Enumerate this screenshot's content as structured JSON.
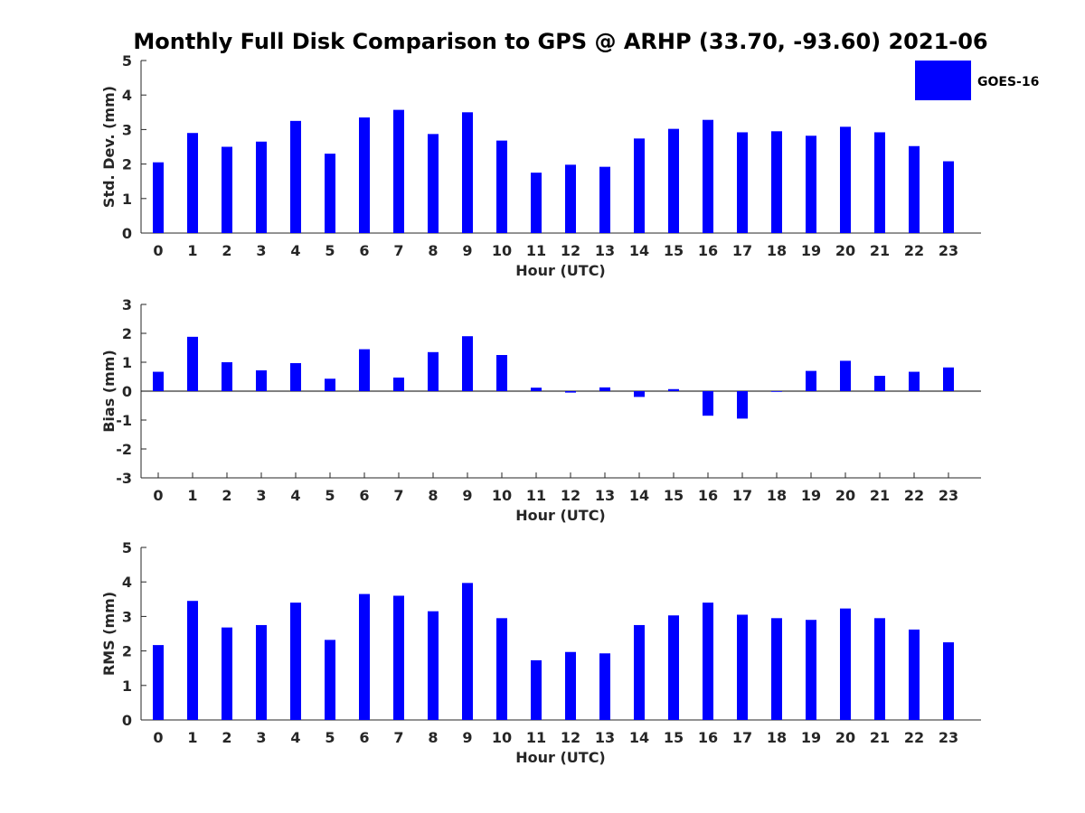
{
  "chart_title": "Monthly Full Disk Comparison to GPS @ ARHP (33.70, -93.60) 2021-06",
  "legend": {
    "label": "GOES-16",
    "color": "#0000ff"
  },
  "chart_data": [
    {
      "type": "bar",
      "name": "std-dev",
      "categories": [
        "0",
        "1",
        "2",
        "3",
        "4",
        "5",
        "6",
        "7",
        "8",
        "9",
        "10",
        "11",
        "12",
        "13",
        "14",
        "15",
        "16",
        "17",
        "18",
        "19",
        "20",
        "21",
        "22",
        "23"
      ],
      "values": [
        2.05,
        2.9,
        2.5,
        2.65,
        3.25,
        2.3,
        3.35,
        3.57,
        2.87,
        3.5,
        2.68,
        1.75,
        1.98,
        1.92,
        2.74,
        3.02,
        3.28,
        2.92,
        2.95,
        2.82,
        3.08,
        2.92,
        2.52,
        2.08
      ],
      "xlabel": "Hour (UTC)",
      "ylabel": "Std. Dev. (mm)",
      "ylim": [
        0,
        5
      ],
      "yticks": [
        "0",
        "1",
        "2",
        "3",
        "4",
        "5"
      ],
      "series_label": "GOES-16",
      "color": "#0000ff",
      "grid": false
    },
    {
      "type": "bar",
      "name": "bias",
      "categories": [
        "0",
        "1",
        "2",
        "3",
        "4",
        "5",
        "6",
        "7",
        "8",
        "9",
        "10",
        "11",
        "12",
        "13",
        "14",
        "15",
        "16",
        "17",
        "18",
        "19",
        "20",
        "21",
        "22",
        "23"
      ],
      "values": [
        0.67,
        1.88,
        1.0,
        0.72,
        0.97,
        0.43,
        1.45,
        0.47,
        1.35,
        1.9,
        1.25,
        0.12,
        -0.05,
        0.13,
        -0.2,
        0.07,
        -0.85,
        -0.95,
        -0.02,
        0.7,
        1.05,
        0.53,
        0.67,
        0.82
      ],
      "xlabel": "Hour (UTC)",
      "ylabel": "Bias (mm)",
      "ylim": [
        -3,
        3
      ],
      "yticks": [
        "-3",
        "-2",
        "-1",
        "0",
        "1",
        "2",
        "3"
      ],
      "series_label": "GOES-16",
      "color": "#0000ff",
      "grid": false
    },
    {
      "type": "bar",
      "name": "rms",
      "categories": [
        "0",
        "1",
        "2",
        "3",
        "4",
        "5",
        "6",
        "7",
        "8",
        "9",
        "10",
        "11",
        "12",
        "13",
        "14",
        "15",
        "16",
        "17",
        "18",
        "19",
        "20",
        "21",
        "22",
        "23"
      ],
      "values": [
        2.17,
        3.45,
        2.68,
        2.75,
        3.4,
        2.32,
        3.65,
        3.6,
        3.15,
        3.97,
        2.95,
        1.73,
        1.97,
        1.93,
        2.75,
        3.03,
        3.4,
        3.05,
        2.95,
        2.9,
        3.23,
        2.95,
        2.62,
        2.25
      ],
      "xlabel": "Hour (UTC)",
      "ylabel": "RMS (mm)",
      "ylim": [
        0,
        5
      ],
      "yticks": [
        "0",
        "1",
        "2",
        "3",
        "4",
        "5"
      ],
      "series_label": "GOES-16",
      "color": "#0000ff",
      "grid": false
    }
  ]
}
